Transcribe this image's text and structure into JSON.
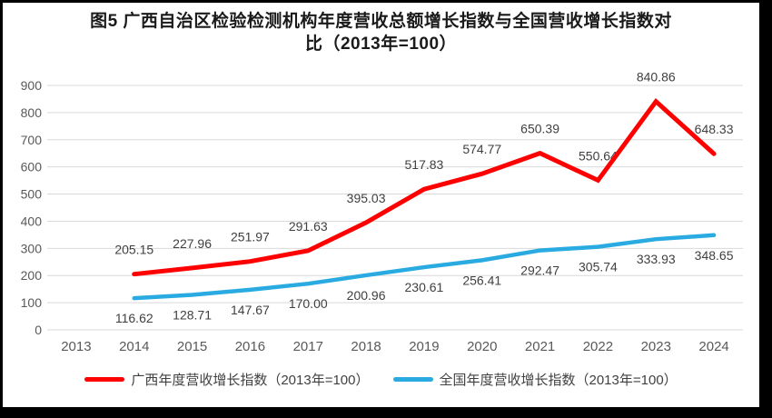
{
  "title": {
    "line1": "图5  广西自治区检验检测机构年度营收总额增长指数与全国营收增长指数对",
    "line2": "比（2013年=100）"
  },
  "chart_data": {
    "type": "line",
    "categories": [
      "2013",
      "2014",
      "2015",
      "2016",
      "2017",
      "2018",
      "2019",
      "2020",
      "2021",
      "2022",
      "2023",
      "2024"
    ],
    "series": [
      {
        "name": "广西年度营收增长指数（2013年=100）",
        "color": "#FF0000",
        "label_position": "above",
        "values": [
          null,
          205.15,
          227.96,
          251.97,
          291.63,
          395.03,
          517.83,
          574.77,
          650.39,
          550.64,
          840.86,
          648.33
        ]
      },
      {
        "name": "全国年度营收增长指数（2013年=100）",
        "color": "#29ABE2",
        "label_position": "below",
        "values": [
          null,
          116.62,
          128.71,
          147.67,
          170.0,
          200.96,
          230.61,
          256.41,
          292.47,
          305.74,
          333.93,
          348.65
        ]
      }
    ],
    "y_axis": {
      "min": 0,
      "max": 900,
      "step": 100
    },
    "x_axis_label": "",
    "y_axis_label": "",
    "grid": "horizontal",
    "legend_position": "bottom",
    "label_decimals": 2
  },
  "colors": {
    "grid": "#D9D9D9",
    "axis_text": "#595959",
    "data_label": "#404040",
    "frame_border": "#000000"
  }
}
